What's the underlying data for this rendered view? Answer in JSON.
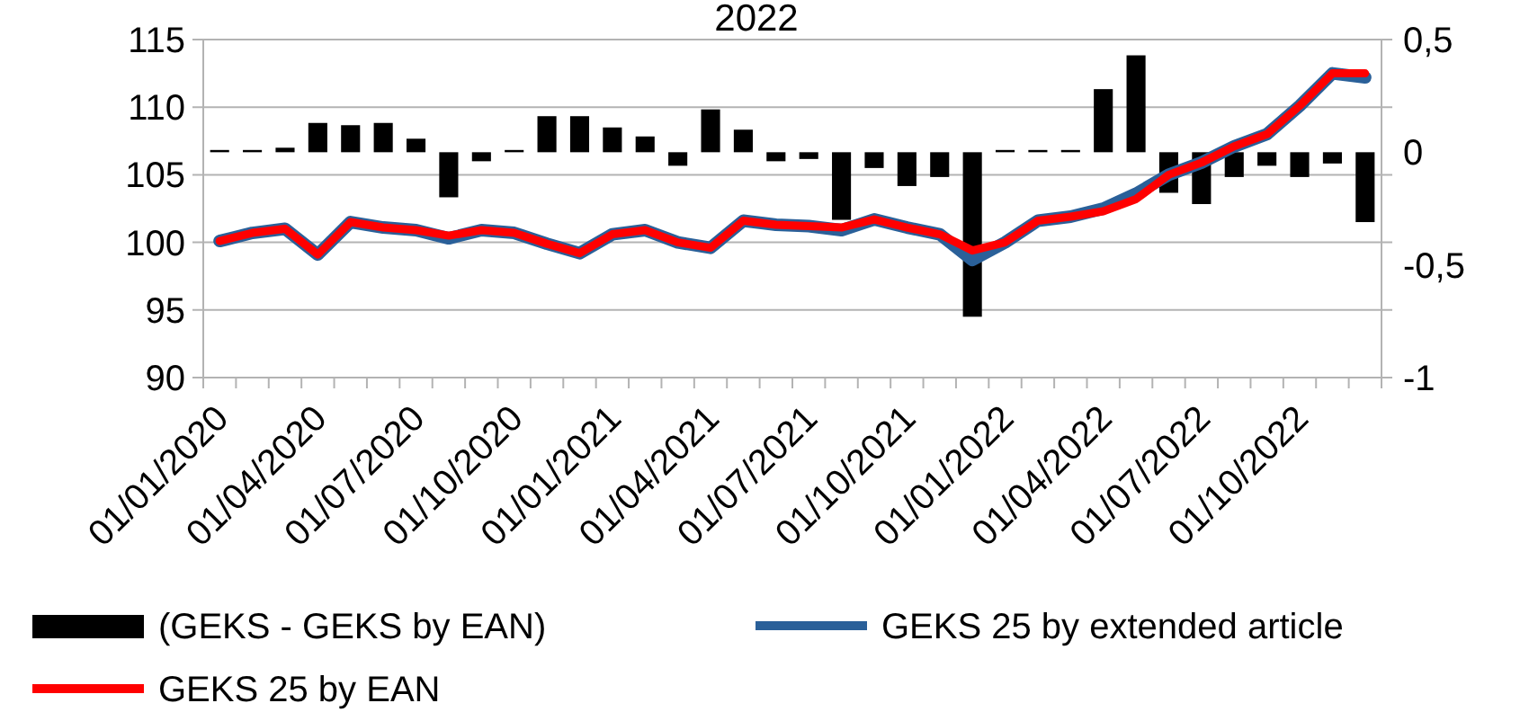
{
  "chart_data": {
    "type": "bar",
    "title": "2022",
    "categories": [
      "01/01/2020",
      null,
      null,
      "01/04/2020",
      null,
      null,
      "01/07/2020",
      null,
      null,
      "01/10/2020",
      null,
      null,
      "01/01/2021",
      null,
      null,
      "01/04/2021",
      null,
      null,
      "01/07/2021",
      null,
      null,
      "01/10/2021",
      null,
      null,
      "01/01/2022",
      null,
      null,
      "01/04/2022",
      null,
      null,
      "01/07/2022",
      null,
      null,
      "01/10/2022",
      null,
      null
    ],
    "series": [
      {
        "name": "(GEKS - GEKS by EAN)",
        "axis": "y2",
        "color": "#000000",
        "values": [
          0.01,
          0.01,
          0.02,
          0.13,
          0.12,
          0.13,
          0.06,
          -0.2,
          -0.04,
          0.01,
          0.16,
          0.16,
          0.11,
          0.07,
          -0.06,
          0.19,
          0.1,
          -0.04,
          -0.03,
          -0.3,
          -0.07,
          -0.15,
          -0.11,
          -0.73,
          0.01,
          0.01,
          0.01,
          0.28,
          0.43,
          -0.18,
          -0.23,
          -0.11,
          -0.06,
          -0.11,
          -0.05,
          -0.31
        ]
      },
      {
        "name": "GEKS 25 by extended article",
        "type": "line",
        "color": "#2a6099",
        "values": [
          100.1,
          100.7,
          101.0,
          99.1,
          101.5,
          101.1,
          100.9,
          100.3,
          100.9,
          100.7,
          99.9,
          99.2,
          100.6,
          100.9,
          100.0,
          99.6,
          101.6,
          101.3,
          101.2,
          100.9,
          101.7,
          101.1,
          100.6,
          98.7,
          100.0,
          101.6,
          101.9,
          102.5,
          103.6,
          105.0,
          105.9,
          107.1,
          108.0,
          110.1,
          112.5,
          112.2
        ]
      },
      {
        "name": "GEKS 25 by EAN",
        "type": "line",
        "color": "#ff0000",
        "values": [
          100.1,
          100.7,
          101.0,
          99.1,
          101.5,
          101.1,
          100.9,
          100.5,
          100.9,
          100.7,
          99.9,
          99.2,
          100.6,
          100.9,
          100.0,
          99.6,
          101.6,
          101.3,
          101.2,
          101.1,
          101.7,
          101.1,
          100.6,
          99.4,
          100.0,
          101.6,
          101.9,
          102.3,
          103.2,
          105.0,
          105.9,
          107.1,
          108.0,
          110.1,
          112.5,
          112.5
        ]
      }
    ],
    "ylim": [
      90,
      115
    ],
    "yticks": [
      90,
      95,
      100,
      105,
      110,
      115
    ],
    "y2lim": [
      -1,
      0.5
    ],
    "y2ticks": [
      {
        "value": -1,
        "label": "-1"
      },
      {
        "value": -0.5,
        "label": "-0,5"
      },
      {
        "value": 0,
        "label": "0"
      },
      {
        "value": 0.5,
        "label": "0,5"
      }
    ],
    "grid": "y",
    "legend": "bottom"
  }
}
